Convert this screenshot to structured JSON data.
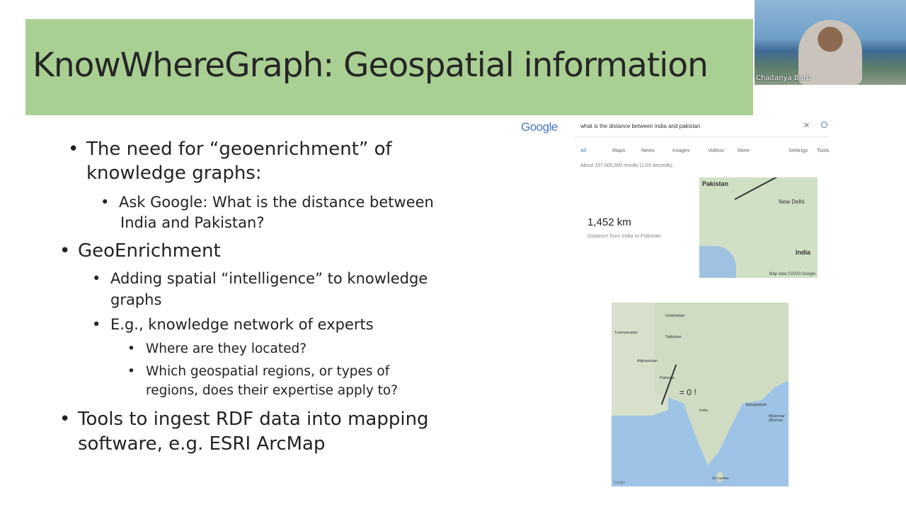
{
  "slide": {
    "title": "KnowWhereGraph: Geospatial information",
    "bullets": [
      {
        "level": 1,
        "line1": "The need for “geoenrichment” of",
        "line2": "knowledge graphs:"
      },
      {
        "level": 2,
        "line1": "Ask Google: What is the distance between",
        "line2": "India and Pakistan?"
      },
      {
        "level": 1,
        "line1": "GeoEnrichment"
      },
      {
        "level": 2,
        "line1": "Adding spatial “intelligence” to knowledge",
        "line2": "graphs"
      },
      {
        "level": 2,
        "line1": "E.g., knowledge network of experts"
      },
      {
        "level": 3,
        "line1": "Where are they located?"
      },
      {
        "level": 3,
        "line1": "Which geospatial regions, or types of",
        "line2": "regions, does their expertise apply to?"
      },
      {
        "level": 1,
        "line1": "Tools to ingest RDF data into mapping",
        "line2": "software, e.g. ESRI ArcMap"
      }
    ]
  },
  "video": {
    "participant_name": "Chaitanya Baru"
  },
  "google": {
    "logo": "Google",
    "query": "what is the distance between india and pakistan",
    "tabs": [
      "All",
      "Maps",
      "News",
      "Images",
      "Videos",
      "More",
      "Settings",
      "Tools"
    ],
    "results_count": "About 157,000,000 results (1.03 seconds)",
    "distance_value": "1,452 km",
    "distance_label": "Distance from India to Pakistan",
    "map_labels": {
      "pakistan": "Pakistan",
      "new_delhi": "New Delhi",
      "india": "India"
    },
    "map_attribution": "Map data ©2020 Google"
  },
  "big_map": {
    "labels": [
      "Uzbekistan",
      "Turkmenistan",
      "Tajikistan",
      "Afghanistan",
      "Pakistan",
      "India",
      "Bangladesh",
      "Myanmar (Burma)",
      "Sri Lanka"
    ],
    "annotation": "= 0 !",
    "attribution": "Google"
  }
}
